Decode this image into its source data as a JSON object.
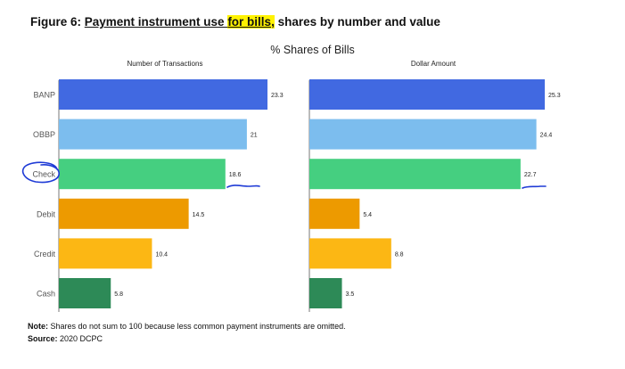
{
  "figure": {
    "title_prefix": "Figure 6: ",
    "title_part1": "Payment instrument use ",
    "title_highlight": "for bills,",
    "title_part2": " shares by number and value",
    "highlight_color": "#fff200",
    "annotation_color": "#1f3bd6"
  },
  "suptitle": "% Shares of Bills",
  "note_label": "Note:",
  "note_text": " Shares do not sum to 100 because less common payment instruments are omitted.",
  "source_label": "Source:",
  "source_text": " 2020 DCPC",
  "chart_data": [
    {
      "type": "bar",
      "orientation": "horizontal",
      "title": "Number of Transactions",
      "categories": [
        "BANP",
        "OBBP",
        "Check",
        "Debit",
        "Credit",
        "Cash"
      ],
      "values": [
        23.3,
        21,
        18.6,
        14.5,
        10.4,
        5.8
      ],
      "value_labels": [
        "23.3",
        "21",
        "18.6",
        "14.5",
        "10.4",
        "5.8"
      ],
      "xlim": [
        0,
        23.3
      ],
      "colors": [
        "#4169e1",
        "#7cbdee",
        "#45cf80",
        "#ed9a00",
        "#fcb714",
        "#2d8a57"
      ],
      "grid": false
    },
    {
      "type": "bar",
      "orientation": "horizontal",
      "title": "Dollar Amount",
      "categories": [
        "BANP",
        "OBBP",
        "Check",
        "Debit",
        "Credit",
        "Cash"
      ],
      "values": [
        25.3,
        24.4,
        22.7,
        5.4,
        8.8,
        3.5
      ],
      "value_labels": [
        "25.3",
        "24.4",
        "22.7",
        "5.4",
        "8.8",
        "3.5"
      ],
      "xlim": [
        0,
        25.3
      ],
      "colors": [
        "#4169e1",
        "#7cbdee",
        "#45cf80",
        "#ed9a00",
        "#fcb714",
        "#2d8a57"
      ],
      "grid": false
    }
  ]
}
